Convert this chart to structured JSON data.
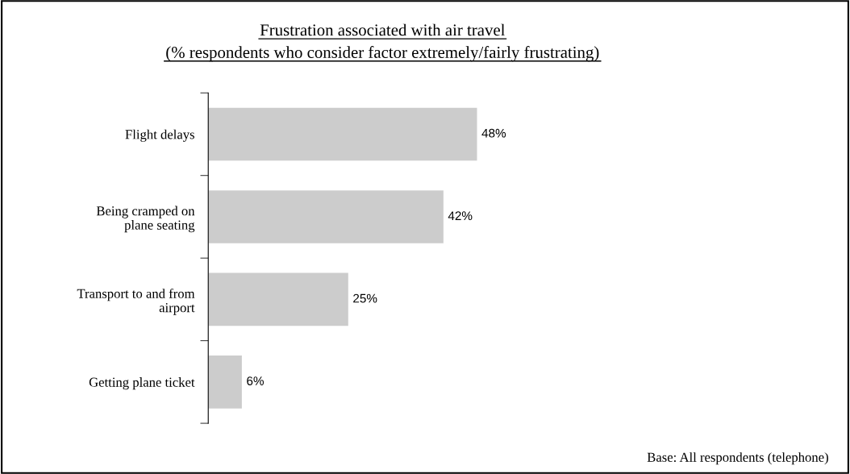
{
  "chart_data": {
    "type": "bar",
    "orientation": "horizontal",
    "title": "Frustration associated with air travel",
    "subtitle": "(% respondents who consider factor extremely/fairly frustrating)",
    "categories": [
      "Flight delays",
      "Being cramped on\nplane seating",
      "Transport to and from\nairport",
      "Getting plane ticket"
    ],
    "values": [
      48,
      42,
      25,
      6
    ],
    "value_labels": [
      "48%",
      "42%",
      "25%",
      "6%"
    ],
    "color": "#cccccc",
    "annotations": [
      "Base: All respondents (telephone)"
    ],
    "grid": false,
    "legend": false
  }
}
